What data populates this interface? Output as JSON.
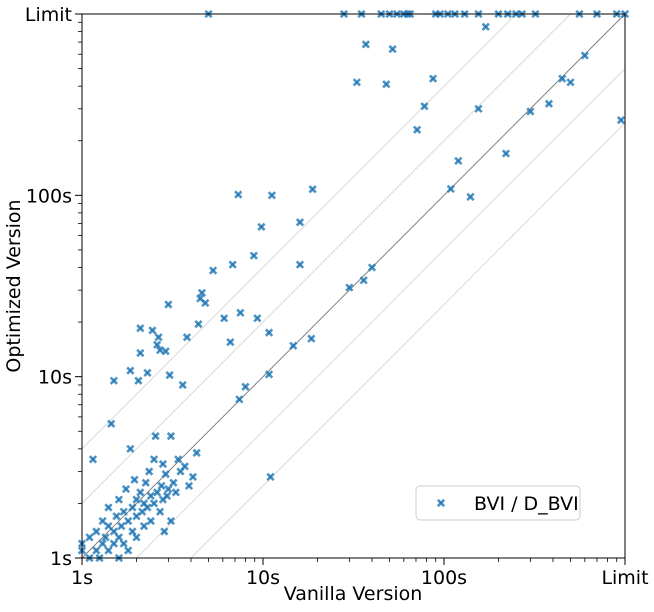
{
  "chart_data": {
    "type": "scatter",
    "title": "",
    "xlabel": "Vanilla Version",
    "ylabel": "Optimized Version",
    "scale": "log",
    "xlim": [
      1,
      1000
    ],
    "ylim": [
      1,
      1000
    ],
    "xticks": [
      {
        "value": 1,
        "label": "1s"
      },
      {
        "value": 10,
        "label": "10s"
      },
      {
        "value": 100,
        "label": "100s"
      },
      {
        "value": 1000,
        "label": "Limit"
      }
    ],
    "yticks": [
      {
        "value": 1,
        "label": "1s"
      },
      {
        "value": 10,
        "label": "10s"
      },
      {
        "value": 100,
        "label": "100s"
      },
      {
        "value": 1000,
        "label": "Limit"
      }
    ],
    "reference_lines": {
      "diagonal": "y = x",
      "factors": [
        0.25,
        0.5,
        2,
        4
      ],
      "colors": {
        "diagonal": "#808080",
        "factors": "#d9d9d9"
      }
    },
    "legend": {
      "position": "lower-right"
    },
    "grid": false,
    "series": [
      {
        "name": "BVI / D_BVI",
        "color": "#1f77b4",
        "marker": "x",
        "points": [
          [
            1.0,
            1.1
          ],
          [
            1.0,
            1.2
          ],
          [
            1.1,
            1.0
          ],
          [
            1.1,
            1.3
          ],
          [
            1.15,
            3.5
          ],
          [
            1.2,
            1.1
          ],
          [
            1.2,
            1.4
          ],
          [
            1.25,
            1.0
          ],
          [
            1.3,
            1.2
          ],
          [
            1.3,
            1.6
          ],
          [
            1.35,
            1.3
          ],
          [
            1.4,
            1.1
          ],
          [
            1.4,
            1.5
          ],
          [
            1.4,
            1.9
          ],
          [
            1.45,
            5.5
          ],
          [
            1.5,
            9.5
          ],
          [
            1.5,
            1.2
          ],
          [
            1.5,
            1.4
          ],
          [
            1.55,
            1.7
          ],
          [
            1.6,
            1.0
          ],
          [
            1.6,
            1.3
          ],
          [
            1.6,
            2.1
          ],
          [
            1.65,
            1.5
          ],
          [
            1.7,
            1.8
          ],
          [
            1.7,
            1.2
          ],
          [
            1.75,
            2.4
          ],
          [
            1.8,
            1.6
          ],
          [
            1.8,
            1.1
          ],
          [
            1.85,
            4.0
          ],
          [
            1.85,
            10.8
          ],
          [
            1.9,
            1.9
          ],
          [
            1.9,
            1.4
          ],
          [
            1.95,
            2.7
          ],
          [
            2.0,
            1.7
          ],
          [
            2.0,
            2.1
          ],
          [
            2.0,
            1.3
          ],
          [
            2.05,
            9.5
          ],
          [
            2.1,
            2.3
          ],
          [
            2.1,
            13.5
          ],
          [
            2.1,
            18.5
          ],
          [
            2.15,
            1.8
          ],
          [
            2.2,
            2.0
          ],
          [
            2.2,
            1.5
          ],
          [
            2.25,
            2.6
          ],
          [
            2.3,
            1.9
          ],
          [
            2.3,
            10.5
          ],
          [
            2.35,
            3.0
          ],
          [
            2.4,
            2.2
          ],
          [
            2.4,
            1.6
          ],
          [
            2.45,
            18.0
          ],
          [
            2.5,
            2.0
          ],
          [
            2.5,
            3.5
          ],
          [
            2.55,
            4.7
          ],
          [
            2.6,
            15.0
          ],
          [
            2.6,
            2.3
          ],
          [
            2.65,
            16.5
          ],
          [
            2.7,
            14.0
          ],
          [
            2.7,
            1.8
          ],
          [
            2.75,
            2.5
          ],
          [
            2.8,
            2.1
          ],
          [
            2.8,
            3.3
          ],
          [
            2.85,
            1.4
          ],
          [
            2.9,
            2.9
          ],
          [
            2.9,
            13.8
          ],
          [
            2.95,
            2.2
          ],
          [
            3.0,
            25.0
          ],
          [
            3.0,
            2.4
          ],
          [
            3.05,
            10.2
          ],
          [
            3.1,
            4.7
          ],
          [
            3.1,
            1.6
          ],
          [
            3.2,
            2.6
          ],
          [
            3.3,
            2.3
          ],
          [
            3.4,
            3.5
          ],
          [
            3.5,
            3.0
          ],
          [
            3.6,
            9.0
          ],
          [
            3.7,
            3.2
          ],
          [
            3.8,
            16.5
          ],
          [
            3.9,
            2.5
          ],
          [
            4.1,
            2.8
          ],
          [
            4.3,
            3.8
          ],
          [
            4.4,
            19.5
          ],
          [
            4.5,
            27.0
          ],
          [
            4.6,
            29.0
          ],
          [
            4.8,
            25.5
          ],
          [
            5.0,
            1000
          ],
          [
            5.3,
            38.5
          ],
          [
            6.1,
            21.0
          ],
          [
            6.6,
            15.5
          ],
          [
            6.8,
            41.5
          ],
          [
            7.3,
            101.0
          ],
          [
            7.4,
            7.5
          ],
          [
            7.5,
            22.5
          ],
          [
            8.0,
            8.8
          ],
          [
            8.9,
            46.5
          ],
          [
            9.3,
            21.0
          ],
          [
            9.8,
            67.0
          ],
          [
            10.8,
            17.5
          ],
          [
            10.8,
            10.3
          ],
          [
            11.0,
            2.8
          ],
          [
            11.2,
            100.0
          ],
          [
            14.7,
            14.8
          ],
          [
            16.0,
            71.0
          ],
          [
            16.0,
            41.5
          ],
          [
            18.5,
            16.2
          ],
          [
            18.8,
            108.0
          ],
          [
            36.0,
            34.0
          ],
          [
            71.0,
            230.0
          ],
          [
            78.0,
            310.0
          ],
          [
            87.0,
            440.0
          ],
          [
            109.0,
            108.5
          ],
          [
            120.0,
            155.0
          ],
          [
            140.0,
            98.0
          ],
          [
            155.0,
            300.0
          ],
          [
            170.0,
            850.0
          ],
          [
            200.0,
            1000
          ],
          [
            220.0,
            170.0
          ],
          [
            225.0,
            1000
          ],
          [
            250.0,
            1000
          ],
          [
            270.0,
            1000
          ],
          [
            300.0,
            290.0
          ],
          [
            320.0,
            1000
          ],
          [
            380.0,
            320.0
          ],
          [
            450.0,
            440.0
          ],
          [
            500.0,
            420.0
          ],
          [
            560.0,
            1000
          ],
          [
            600.0,
            590.0
          ],
          [
            700.0,
            1000
          ],
          [
            900.0,
            1000
          ],
          [
            950.0,
            260.0
          ],
          [
            1000,
            1000
          ],
          [
            30.0,
            31.0
          ],
          [
            40.0,
            40.0
          ],
          [
            45.0,
            1000
          ],
          [
            50.0,
            1000
          ],
          [
            55.0,
            1000
          ],
          [
            60.0,
            1000
          ],
          [
            65.0,
            1000
          ],
          [
            28.0,
            1000
          ],
          [
            33.0,
            420.0
          ],
          [
            37.0,
            680.0
          ],
          [
            48.0,
            410.0
          ],
          [
            52.0,
            640.0
          ],
          [
            90.0,
            1000
          ],
          [
            95.0,
            1000
          ],
          [
            105.0,
            1000
          ],
          [
            115.0,
            1000
          ],
          [
            130.0,
            1000
          ],
          [
            155.0,
            1000
          ],
          [
            63.0,
            1000
          ],
          [
            35.0,
            1000
          ]
        ]
      }
    ]
  }
}
